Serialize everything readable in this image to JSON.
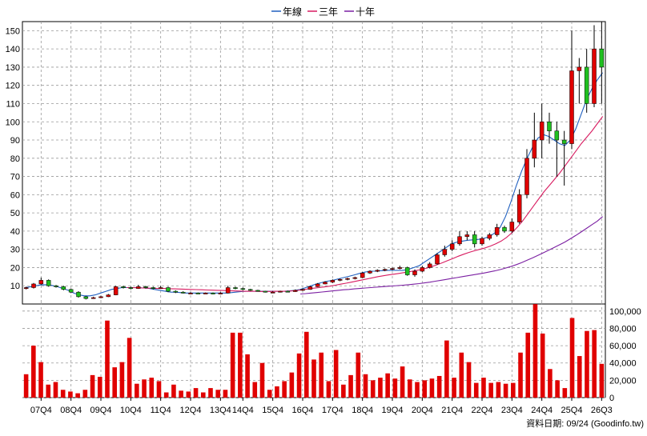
{
  "legend": [
    {
      "label": "年線",
      "color": "#1f5fbf"
    },
    {
      "label": "三年",
      "color": "#d81b60"
    },
    {
      "label": "十年",
      "color": "#7b1fa2"
    }
  ],
  "footer": "資料日期: 09/24  (Goodinfo.tw)",
  "colors": {
    "up": "#e00000",
    "down": "#20c020",
    "volume": "#e00000",
    "grid": "#999999"
  },
  "chart_data": [
    {
      "type": "candlestick",
      "title": "",
      "ylim": [
        0,
        155
      ],
      "y_ticks": [
        10,
        20,
        30,
        40,
        50,
        60,
        70,
        80,
        90,
        100,
        110,
        120,
        130,
        140,
        150
      ],
      "x_tick_labels": [
        "07Q4",
        "08Q4",
        "09Q4",
        "10Q4",
        "11Q4",
        "12Q4",
        "13Q4",
        "14Q4",
        "15Q4",
        "16Q4",
        "17Q4",
        "18Q4",
        "19Q4",
        "20Q4",
        "21Q4",
        "22Q4",
        "23Q4",
        "24Q4",
        "25Q4",
        "26Q3"
      ],
      "grid": true,
      "series": [
        {
          "name": "年線",
          "values": [
            9,
            9.5,
            10,
            10.5,
            10.6,
            10.2,
            9.5,
            8.5,
            7.5,
            6,
            5,
            4.5,
            4.5,
            5,
            6,
            7,
            8,
            8.5,
            9,
            9,
            9,
            9,
            8.8,
            8.5,
            8,
            7.5,
            7,
            6.5,
            6.5,
            6.2,
            6,
            6,
            6,
            6,
            6,
            6,
            6,
            6,
            6.2,
            6.5,
            6.8,
            7,
            7,
            7,
            7,
            7,
            7,
            7,
            7,
            7.2,
            7.5,
            8,
            9,
            10,
            11,
            11.8,
            12.5,
            13,
            13.8,
            14.5,
            15.2,
            16,
            16.8,
            17.5,
            18,
            18,
            18.3,
            18.5,
            18.5,
            18.5,
            18.5,
            19,
            20,
            21,
            23,
            25,
            27,
            29,
            31,
            33,
            34,
            34.5,
            35,
            35.2,
            35.5,
            36,
            37,
            39,
            42,
            48,
            56,
            65,
            73,
            80,
            86,
            91,
            93,
            92,
            90,
            88,
            87,
            90,
            96,
            104,
            112,
            118,
            123,
            127
          ]
        },
        {
          "name": "三年",
          "values": [
            null,
            null,
            null,
            null,
            null,
            null,
            null,
            null,
            null,
            null,
            null,
            null,
            null,
            null,
            null,
            null,
            null,
            null,
            null,
            9,
            9,
            8.9,
            8.8,
            8.7,
            8.6,
            8.5,
            8.5,
            8.4,
            8.3,
            8.2,
            8.1,
            8,
            7.9,
            7.8,
            7.7,
            7.6,
            7.5,
            7.4,
            7.3,
            7.2,
            7.1,
            7,
            7,
            7,
            6.9,
            6.9,
            6.9,
            7,
            7,
            7,
            7.2,
            7.5,
            7.9,
            8.3,
            8.7,
            9,
            9.4,
            9.8,
            10.3,
            10.9,
            11.4,
            12,
            12.6,
            13.2,
            13.8,
            14.4,
            15,
            15.5,
            16,
            16.4,
            16.8,
            17.3,
            17.8,
            18.3,
            18.9,
            19.6,
            20.5,
            21.5,
            22.6,
            23.8,
            25,
            26.2,
            27.3,
            28.3,
            29.2,
            30,
            30.8,
            31.8,
            33,
            34.5,
            36.5,
            39,
            42,
            45.5,
            49.5,
            53.5,
            57.5,
            61.5,
            65,
            68.5,
            72,
            76,
            80,
            84,
            88,
            91.5,
            95,
            99,
            103
          ]
        },
        {
          "name": "十年",
          "values": [
            null,
            null,
            null,
            null,
            null,
            null,
            null,
            null,
            null,
            null,
            null,
            null,
            null,
            null,
            null,
            null,
            null,
            null,
            null,
            null,
            null,
            null,
            null,
            null,
            null,
            null,
            null,
            null,
            null,
            null,
            null,
            null,
            null,
            null,
            null,
            null,
            null,
            null,
            null,
            null,
            null,
            null,
            null,
            null,
            null,
            null,
            null,
            null,
            null,
            null,
            null,
            5.5,
            5.7,
            6,
            6.3,
            6.6,
            6.9,
            7.2,
            7.5,
            7.8,
            8,
            8.3,
            8.5,
            8.8,
            9,
            9.2,
            9.5,
            9.7,
            9.9,
            10.1,
            10.3,
            10.6,
            10.9,
            11.2,
            11.6,
            12,
            12.5,
            13,
            13.5,
            14,
            14.5,
            15,
            15.5,
            16,
            16.5,
            17,
            17.6,
            18.2,
            18.9,
            19.7,
            20.6,
            21.6,
            22.7,
            24,
            25.3,
            26.7,
            28.1,
            29.5,
            31,
            32.5,
            34,
            35.8,
            37.6,
            39.5,
            41.5,
            43.5,
            45.5,
            48
          ]
        }
      ],
      "candles": [
        [
          8.5,
          9,
          9.5,
          8
        ],
        [
          9,
          11,
          11.5,
          8.5
        ],
        [
          11,
          13,
          14.5,
          10.5
        ],
        [
          13,
          10,
          13.5,
          9.5
        ],
        [
          10,
          9.5,
          10.5,
          9
        ],
        [
          9.5,
          8,
          10,
          7.5
        ],
        [
          8,
          6.5,
          8.5,
          6
        ],
        [
          6.5,
          4,
          7,
          3.5
        ],
        [
          4,
          3,
          4.5,
          2.5
        ],
        [
          3,
          3.5,
          4,
          2.8
        ],
        [
          3.5,
          4,
          4.5,
          3.2
        ],
        [
          4,
          5,
          5.5,
          3.8
        ],
        [
          5,
          9.5,
          10,
          4.8
        ],
        [
          9.5,
          9,
          10,
          8.5
        ],
        [
          9,
          8.5,
          9.5,
          8
        ],
        [
          8.5,
          9.5,
          10.5,
          8.3
        ],
        [
          9.5,
          9,
          10,
          8.5
        ],
        [
          9,
          8.5,
          9.5,
          8
        ],
        [
          8.5,
          9,
          10,
          8.3
        ],
        [
          9,
          7,
          9.5,
          6.5
        ],
        [
          7,
          6.5,
          7.5,
          6
        ],
        [
          6.5,
          6,
          7,
          5.8
        ],
        [
          6,
          6,
          6.5,
          5.5
        ],
        [
          6,
          5.8,
          6.3,
          5.5
        ],
        [
          5.8,
          6,
          6.3,
          5.5
        ],
        [
          6,
          5.5,
          6.3,
          5.3
        ],
        [
          5.5,
          6,
          6.5,
          5.3
        ],
        [
          6,
          9,
          10,
          5.8
        ],
        [
          9,
          8.5,
          9.5,
          8
        ],
        [
          8.5,
          8,
          9,
          7.5
        ],
        [
          8,
          7.5,
          8.3,
          7.2
        ],
        [
          7.5,
          7,
          7.8,
          6.8
        ],
        [
          7,
          6.5,
          7.2,
          6.3
        ],
        [
          6.5,
          6.5,
          7,
          6.2
        ],
        [
          6.5,
          7,
          7.3,
          6.3
        ],
        [
          7,
          6.8,
          7.3,
          6.5
        ],
        [
          6.8,
          7.5,
          8,
          6.6
        ],
        [
          7.5,
          8,
          8.5,
          7.2
        ],
        [
          8,
          9.5,
          10,
          7.8
        ],
        [
          9.5,
          11,
          11.5,
          9.3
        ],
        [
          11,
          12,
          12.5,
          10.8
        ],
        [
          12,
          13,
          13.5,
          11.5
        ],
        [
          13,
          13.5,
          14,
          12.5
        ],
        [
          13.5,
          14,
          14.5,
          13
        ],
        [
          14,
          14.5,
          15,
          13.5
        ],
        [
          14.5,
          17,
          17.5,
          14.2
        ],
        [
          17,
          18,
          18.5,
          16.5
        ],
        [
          18,
          18.5,
          19,
          17.5
        ],
        [
          18.5,
          19,
          19.5,
          18
        ],
        [
          19,
          19.5,
          20,
          18.5
        ],
        [
          19.5,
          20,
          21,
          19
        ],
        [
          20,
          16,
          20.5,
          15.5
        ],
        [
          16,
          18,
          19,
          15
        ],
        [
          18,
          20,
          21,
          17.5
        ],
        [
          20,
          22,
          23,
          19.5
        ],
        [
          22,
          27,
          28,
          21.5
        ],
        [
          27,
          30,
          32,
          26
        ],
        [
          30,
          33,
          35,
          29
        ],
        [
          33,
          37,
          40,
          32
        ],
        [
          37,
          38,
          40,
          35
        ],
        [
          38,
          33,
          40,
          31
        ],
        [
          33,
          36,
          37,
          32
        ],
        [
          36,
          38,
          39,
          35
        ],
        [
          38,
          42,
          44,
          37
        ],
        [
          42,
          40,
          43,
          39
        ],
        [
          40,
          45,
          47,
          39
        ],
        [
          45,
          60,
          63,
          44
        ],
        [
          60,
          80,
          85,
          58
        ],
        [
          80,
          90,
          105,
          75
        ],
        [
          90,
          100,
          110,
          80
        ],
        [
          100,
          95,
          105,
          88
        ],
        [
          95,
          90,
          100,
          70
        ],
        [
          90,
          88,
          95,
          65
        ],
        [
          88,
          128,
          150,
          85
        ],
        [
          128,
          130,
          135,
          110
        ],
        [
          130,
          110,
          140,
          105
        ],
        [
          110,
          140,
          153,
          108
        ],
        [
          140,
          130,
          155,
          110
        ]
      ]
    },
    {
      "type": "bar",
      "title": "",
      "ylim": [
        0,
        110000
      ],
      "y_ticks": [
        0,
        20000,
        40000,
        60000,
        80000,
        100000
      ],
      "y_tick_labels": [
        "0",
        "20,000",
        "40,000",
        "60,000",
        "80,000",
        "100,000"
      ],
      "values": [
        27000,
        60000,
        41000,
        15000,
        18000,
        9000,
        7000,
        5000,
        9000,
        26000,
        24000,
        89000,
        35000,
        41000,
        69000,
        16000,
        21000,
        23000,
        19000,
        6000,
        15000,
        8000,
        7000,
        11000,
        6000,
        11000,
        9000,
        9000,
        75000,
        75000,
        50000,
        18000,
        40000,
        9000,
        13000,
        19000,
        29000,
        51000,
        76000,
        44000,
        52000,
        19000,
        55000,
        15000,
        26000,
        52000,
        27000,
        20000,
        23000,
        28000,
        22000,
        36000,
        21000,
        18000,
        20000,
        22000,
        25000,
        66000,
        23000,
        52000,
        41000,
        17000,
        23000,
        17000,
        18000,
        16000,
        17000,
        52000,
        75000,
        108000,
        74000,
        33000,
        20000,
        11000,
        92000,
        48000,
        77000,
        78000,
        39000
      ]
    }
  ]
}
